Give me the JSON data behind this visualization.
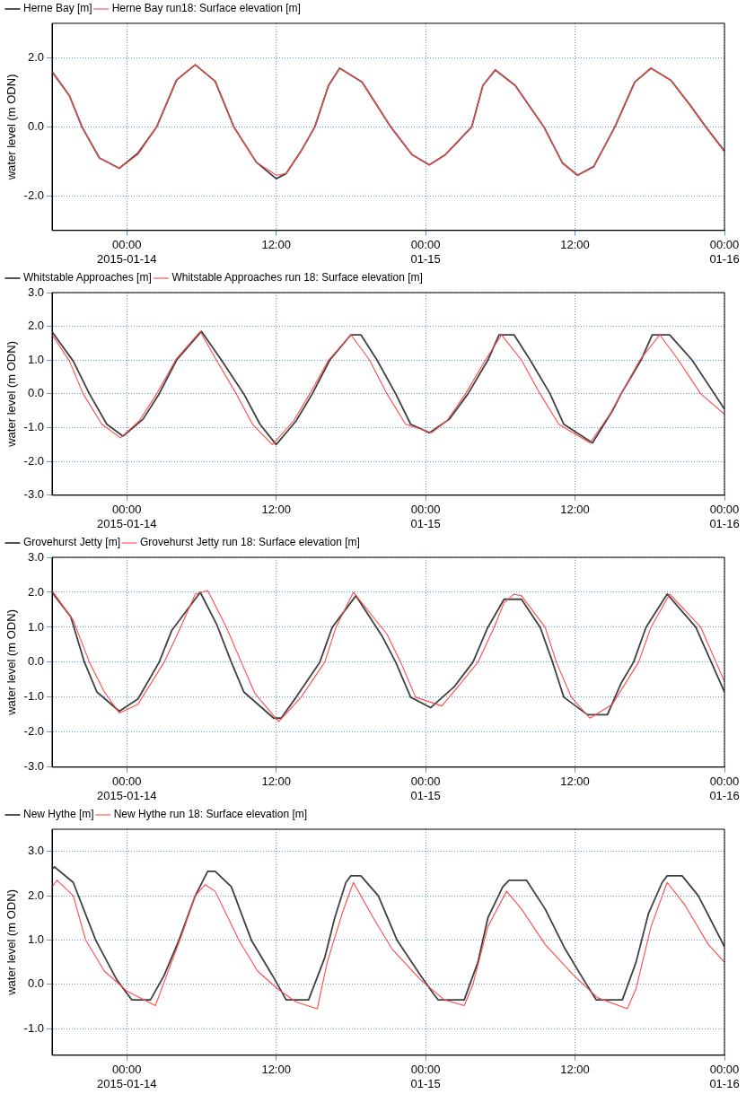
{
  "chart_data": [
    {
      "type": "line",
      "ylabel": "water level (m ODN)",
      "legend": "top left",
      "grid": true,
      "marker": "none",
      "line_style": "solid",
      "xlim": [
        "2015-01-13T18:00",
        "2015-01-16T00:00"
      ],
      "xticks": [
        {
          "value": "2015-01-14T00:00",
          "label": "00:00\n2015-01-14"
        },
        {
          "value": "2015-01-14T12:00",
          "label": "12:00"
        },
        {
          "value": "2015-01-15T00:00",
          "label": "00:00\n01-15"
        },
        {
          "value": "2015-01-15T12:00",
          "label": "12:00"
        },
        {
          "value": "2015-01-16T00:00",
          "label": "00:00\n01-16"
        }
      ],
      "ylim": [
        -3,
        3
      ],
      "yticks": [
        {
          "value": -2,
          "label": "-2.0"
        },
        {
          "value": 0,
          "label": "0.0"
        },
        {
          "value": 2,
          "label": "2.0"
        }
      ],
      "x": [
        "2015-01-13T18:00",
        "2015-01-13T19:24",
        "2015-01-13T20:24",
        "2015-01-13T21:48",
        "2015-01-13T23:24",
        "2015-01-14T00:54",
        "2015-01-14T02:24",
        "2015-01-14T04:00",
        "2015-01-14T05:30",
        "2015-01-14T07:06",
        "2015-01-14T08:36",
        "2015-01-14T10:24",
        "2015-01-14T12:00",
        "2015-01-14T12:48",
        "2015-01-14T14:00",
        "2015-01-14T15:06",
        "2015-01-14T16:12",
        "2015-01-14T17:06",
        "2015-01-14T18:54",
        "2015-01-14T21:12",
        "2015-01-14T22:54",
        "2015-01-15T00:18",
        "2015-01-15T01:36",
        "2015-01-15T03:42",
        "2015-01-15T04:36",
        "2015-01-15T05:36",
        "2015-01-15T07:12",
        "2015-01-15T09:30",
        "2015-01-15T11:00",
        "2015-01-15T12:12",
        "2015-01-15T13:30",
        "2015-01-15T15:12",
        "2015-01-15T16:48",
        "2015-01-15T18:06",
        "2015-01-15T19:42",
        "2015-01-15T21:12",
        "2015-01-15T22:30",
        "2015-01-16T00:00"
      ],
      "series": [
        {
          "name": "Herne Bay [m]",
          "color": "#404040",
          "values": [
            1.6,
            0.9,
            0.0,
            -0.9,
            -1.2,
            -0.76,
            0.0,
            1.36,
            1.8,
            1.32,
            0.0,
            -1.02,
            -1.5,
            -1.35,
            -0.7,
            0.0,
            1.2,
            1.7,
            1.3,
            0.0,
            -0.8,
            -1.1,
            -0.8,
            0.0,
            1.2,
            1.65,
            1.2,
            0.0,
            -1.05,
            -1.4,
            -1.15,
            0.0,
            1.3,
            1.7,
            1.35,
            0.65,
            0.0,
            -0.7
          ]
        },
        {
          "name": "Herne Bay run18: Surface elevation [m]",
          "color": "#ff4a4a",
          "values": [
            1.6,
            0.9,
            0.0,
            -0.9,
            -1.2,
            -0.8,
            0.0,
            1.36,
            1.8,
            1.32,
            0.0,
            -1.02,
            -1.4,
            -1.35,
            -0.7,
            0.0,
            1.2,
            1.7,
            1.3,
            0.0,
            -0.8,
            -1.1,
            -0.8,
            0.0,
            1.2,
            1.65,
            1.2,
            0.0,
            -1.05,
            -1.4,
            -1.15,
            0.0,
            1.3,
            1.7,
            1.35,
            0.65,
            0.0,
            -0.7
          ]
        }
      ]
    },
    {
      "type": "line",
      "ylabel": "water level (m ODN)",
      "legend": "top left",
      "grid": true,
      "marker": "none",
      "line_style": "solid",
      "xlim": [
        "2015-01-13T18:00",
        "2015-01-16T00:00"
      ],
      "xticks": [
        {
          "value": "2015-01-14T00:00",
          "label": "00:00\n2015-01-14"
        },
        {
          "value": "2015-01-14T12:00",
          "label": "12:00"
        },
        {
          "value": "2015-01-15T00:00",
          "label": "00:00\n01-15"
        },
        {
          "value": "2015-01-15T12:00",
          "label": "12:00"
        },
        {
          "value": "2015-01-16T00:00",
          "label": "00:00\n01-16"
        }
      ],
      "ylim": [
        -3,
        3
      ],
      "yticks": [
        {
          "value": -3,
          "label": "-3.0"
        },
        {
          "value": -2,
          "label": "-2.0"
        },
        {
          "value": -1,
          "label": "-1.0"
        },
        {
          "value": 0,
          "label": "0.0"
        },
        {
          "value": 1,
          "label": "1.0"
        },
        {
          "value": 2,
          "label": "2.0"
        },
        {
          "value": 3,
          "label": "3.0"
        }
      ],
      "series": [
        {
          "name": "Whitstable Approaches [m]",
          "color": "#404040",
          "x": [
            "2015-01-13T18:00",
            "2015-01-13T19:42",
            "2015-01-13T21:00",
            "2015-01-13T22:24",
            "2015-01-13T23:42",
            "2015-01-14T01:18",
            "2015-01-14T02:36",
            "2015-01-14T04:00",
            "2015-01-14T06:00",
            "2015-01-14T07:36",
            "2015-01-14T09:24",
            "2015-01-14T10:42",
            "2015-01-14T12:00",
            "2015-01-14T13:36",
            "2015-01-14T14:54",
            "2015-01-14T16:18",
            "2015-01-14T18:00",
            "2015-01-14T18:48",
            "2015-01-14T20:06",
            "2015-01-14T21:36",
            "2015-01-14T22:48",
            "2015-01-15T00:18",
            "2015-01-15T01:54",
            "2015-01-15T03:24",
            "2015-01-15T05:00",
            "2015-01-15T05:54",
            "2015-01-15T07:06",
            "2015-01-15T08:24",
            "2015-01-15T10:00",
            "2015-01-15T11:06",
            "2015-01-15T13:24",
            "2015-01-15T15:00",
            "2015-01-15T15:42",
            "2015-01-15T17:18",
            "2015-01-15T18:12",
            "2015-01-15T19:36",
            "2015-01-15T21:24",
            "2015-01-16T00:00"
          ],
          "values": [
            1.84,
            0.97,
            0.0,
            -0.9,
            -1.25,
            -0.75,
            0.0,
            1.0,
            1.85,
            1.0,
            0.0,
            -0.9,
            -1.5,
            -0.8,
            0.0,
            1.0,
            1.75,
            1.75,
            1.0,
            0.0,
            -0.9,
            -1.15,
            -0.75,
            0.0,
            1.0,
            1.75,
            1.75,
            1.0,
            0.0,
            -0.9,
            -1.45,
            -0.5,
            0.0,
            1.0,
            1.75,
            1.75,
            1.0,
            -0.45
          ]
        },
        {
          "name": "Whitstable Approaches run 18: Surface elevation [m]",
          "color": "#ff4a4a",
          "x": [
            "2015-01-13T18:00",
            "2015-01-13T19:24",
            "2015-01-13T20:30",
            "2015-01-13T22:00",
            "2015-01-13T23:30",
            "2015-01-14T01:00",
            "2015-01-14T02:24",
            "2015-01-14T04:00",
            "2015-01-14T05:54",
            "2015-01-14T07:12",
            "2015-01-14T08:48",
            "2015-01-14T10:06",
            "2015-01-14T11:42",
            "2015-01-14T13:24",
            "2015-01-14T14:42",
            "2015-01-14T16:12",
            "2015-01-14T18:00",
            "2015-01-14T19:30",
            "2015-01-14T20:54",
            "2015-01-14T22:24",
            "2015-01-15T00:30",
            "2015-01-15T01:42",
            "2015-01-15T03:12",
            "2015-01-15T04:48",
            "2015-01-15T06:06",
            "2015-01-15T07:42",
            "2015-01-15T09:12",
            "2015-01-15T10:42",
            "2015-01-15T13:12",
            "2015-01-15T14:48",
            "2015-01-15T15:42",
            "2015-01-15T17:12",
            "2015-01-15T18:48",
            "2015-01-15T20:18",
            "2015-01-15T22:06",
            "2015-01-16T00:00"
          ],
          "values": [
            1.75,
            0.97,
            0.0,
            -0.9,
            -1.3,
            -0.8,
            0.0,
            1.05,
            1.85,
            1.0,
            0.0,
            -0.9,
            -1.5,
            -0.8,
            0.0,
            1.0,
            1.75,
            1.0,
            0.0,
            -0.9,
            -1.15,
            -0.8,
            0.0,
            1.0,
            1.75,
            1.0,
            0.0,
            -0.9,
            -1.45,
            -0.6,
            0.0,
            1.0,
            1.75,
            1.0,
            0.0,
            -0.6
          ]
        }
      ]
    },
    {
      "type": "line",
      "ylabel": "water level (m ODN)",
      "legend": "top left",
      "grid": true,
      "marker": "none",
      "line_style": "solid",
      "xlim": [
        "2015-01-13T18:00",
        "2015-01-16T00:00"
      ],
      "xticks": [
        {
          "value": "2015-01-14T00:00",
          "label": "00:00\n2015-01-14"
        },
        {
          "value": "2015-01-14T12:00",
          "label": "12:00"
        },
        {
          "value": "2015-01-15T00:00",
          "label": "00:00\n01-15"
        },
        {
          "value": "2015-01-15T12:00",
          "label": "12:00"
        },
        {
          "value": "2015-01-16T00:00",
          "label": "00:00\n01-16"
        }
      ],
      "ylim": [
        -3,
        3
      ],
      "yticks": [
        {
          "value": -3,
          "label": "-3.0"
        },
        {
          "value": -2,
          "label": "-2.0"
        },
        {
          "value": -1,
          "label": "-1.0"
        },
        {
          "value": 0,
          "label": "0.0"
        },
        {
          "value": 1,
          "label": "1.0"
        },
        {
          "value": 2,
          "label": "2.0"
        },
        {
          "value": 3,
          "label": "3.0"
        }
      ],
      "series": [
        {
          "name": "Grovehurst Jetty [m]",
          "color": "#404040",
          "x": [
            "2015-01-13T18:00",
            "2015-01-13T19:30",
            "2015-01-13T20:36",
            "2015-01-13T21:36",
            "2015-01-13T23:24",
            "2015-01-14T00:54",
            "2015-01-14T02:36",
            "2015-01-14T03:36",
            "2015-01-14T05:54",
            "2015-01-14T07:12",
            "2015-01-14T08:24",
            "2015-01-14T09:24",
            "2015-01-14T11:48",
            "2015-01-14T12:24",
            "2015-01-14T13:36",
            "2015-01-14T15:30",
            "2015-01-14T16:30",
            "2015-01-14T18:24",
            "2015-01-14T20:30",
            "2015-01-14T21:36",
            "2015-01-14T22:48",
            "2015-01-15T00:24",
            "2015-01-15T02:18",
            "2015-01-15T03:48",
            "2015-01-15T05:00",
            "2015-01-15T06:18",
            "2015-01-15T07:42",
            "2015-01-15T09:12",
            "2015-01-15T10:12",
            "2015-01-15T11:06",
            "2015-01-15T13:00",
            "2015-01-15T14:36",
            "2015-01-15T15:42",
            "2015-01-15T16:42",
            "2015-01-15T17:42",
            "2015-01-15T19:24",
            "2015-01-15T21:42",
            "2015-01-16T00:00"
          ],
          "values": [
            2.0,
            1.3,
            0.0,
            -0.85,
            -1.4,
            -1.05,
            0.0,
            0.9,
            2.0,
            1.1,
            0.0,
            -0.85,
            -1.6,
            -1.6,
            -1.0,
            0.0,
            1.0,
            1.9,
            0.75,
            0.0,
            -1.0,
            -1.3,
            -0.7,
            0.0,
            1.0,
            1.8,
            1.8,
            1.0,
            0.0,
            -1.0,
            -1.5,
            -1.5,
            -0.6,
            0.0,
            1.0,
            1.95,
            1.0,
            -0.85
          ]
        },
        {
          "name": "Grovehurst Jetty run 18: Surface elevation [m]",
          "color": "#ff4a4a",
          "x": [
            "2015-01-13T18:00",
            "2015-01-13T19:42",
            "2015-01-13T21:00",
            "2015-01-13T22:12",
            "2015-01-13T23:24",
            "2015-01-14T00:54",
            "2015-01-14T03:00",
            "2015-01-14T04:12",
            "2015-01-14T05:30",
            "2015-01-14T06:30",
            "2015-01-14T08:00",
            "2015-01-14T09:12",
            "2015-01-14T10:18",
            "2015-01-14T12:12",
            "2015-01-14T14:00",
            "2015-01-14T15:54",
            "2015-01-14T16:48",
            "2015-01-14T18:12",
            "2015-01-14T20:54",
            "2015-01-14T22:00",
            "2015-01-14T23:12",
            "2015-01-15T01:18",
            "2015-01-15T02:36",
            "2015-01-15T04:12",
            "2015-01-15T05:30",
            "2015-01-15T06:18",
            "2015-01-15T07:06",
            "2015-01-15T07:42",
            "2015-01-15T09:36",
            "2015-01-15T10:30",
            "2015-01-15T11:42",
            "2015-01-15T13:12",
            "2015-01-15T15:00",
            "2015-01-15T17:06",
            "2015-01-15T18:06",
            "2015-01-15T19:36",
            "2015-01-15T22:06",
            "2015-01-16T00:00"
          ],
          "values": [
            2.05,
            1.2,
            0.0,
            -0.85,
            -1.45,
            -1.2,
            0.0,
            0.9,
            1.95,
            2.05,
            1.0,
            0.0,
            -0.9,
            -1.7,
            -1.0,
            0.0,
            1.0,
            2.0,
            0.8,
            0.0,
            -1.0,
            -1.25,
            -0.7,
            0.0,
            1.0,
            1.7,
            1.95,
            1.9,
            1.0,
            0.0,
            -1.0,
            -1.6,
            -1.2,
            0.0,
            1.0,
            1.95,
            1.0,
            -0.55
          ]
        }
      ]
    },
    {
      "type": "line",
      "ylabel": "water level (m ODN)",
      "legend": "top left",
      "grid": true,
      "marker": "none",
      "line_style": "solid",
      "xlim": [
        "2015-01-13T18:00",
        "2015-01-16T00:00"
      ],
      "xticks": [
        {
          "value": "2015-01-14T00:00",
          "label": "00:00\n2015-01-14"
        },
        {
          "value": "2015-01-14T12:00",
          "label": "12:00"
        },
        {
          "value": "2015-01-15T00:00",
          "label": "00:00\n01-15"
        },
        {
          "value": "2015-01-15T12:00",
          "label": "12:00"
        },
        {
          "value": "2015-01-16T00:00",
          "label": "00:00\n01-16"
        }
      ],
      "ylim": [
        -1.6,
        3.5
      ],
      "yticks": [
        {
          "value": -1,
          "label": "-1.0"
        },
        {
          "value": 0,
          "label": "0.0"
        },
        {
          "value": 1,
          "label": "1.0"
        },
        {
          "value": 2,
          "label": "2.0"
        },
        {
          "value": 3,
          "label": "3.0"
        }
      ],
      "series": [
        {
          "name": "New Hythe [m]",
          "color": "#404040",
          "x": [
            "2015-01-13T18:00",
            "2015-01-13T18:12",
            "2015-01-13T19:42",
            "2015-01-13T21:30",
            "2015-01-13T23:12",
            "2015-01-14T00:24",
            "2015-01-14T01:54",
            "2015-01-14T03:00",
            "2015-01-14T04:12",
            "2015-01-14T05:30",
            "2015-01-14T06:30",
            "2015-01-14T07:06",
            "2015-01-14T08:24",
            "2015-01-14T10:00",
            "2015-01-14T11:42",
            "2015-01-14T12:30",
            "2015-01-14T12:48",
            "2015-01-14T14:36",
            "2015-01-14T15:54",
            "2015-01-14T16:42",
            "2015-01-14T17:36",
            "2015-01-14T18:00",
            "2015-01-14T18:48",
            "2015-01-14T20:12",
            "2015-01-14T21:42",
            "2015-01-14T23:36",
            "2015-01-15T00:36",
            "2015-01-15T01:00",
            "2015-01-15T03:06",
            "2015-01-15T04:12",
            "2015-01-15T05:00",
            "2015-01-15T06:12",
            "2015-01-15T06:42",
            "2015-01-15T08:06",
            "2015-01-15T09:36",
            "2015-01-15T11:12",
            "2015-01-15T12:42",
            "2015-01-15T13:42",
            "2015-01-15T15:48",
            "2015-01-15T16:54",
            "2015-01-15T17:54",
            "2015-01-15T19:00",
            "2015-01-15T19:24",
            "2015-01-15T20:36",
            "2015-01-15T21:54",
            "2015-01-16T00:00"
          ],
          "values": [
            2.6,
            2.65,
            2.3,
            1.0,
            0.1,
            -0.35,
            -0.35,
            0.2,
            1.0,
            2.0,
            2.55,
            2.55,
            2.2,
            1.0,
            0.2,
            -0.2,
            -0.35,
            -0.35,
            0.6,
            1.5,
            2.3,
            2.45,
            2.45,
            2.0,
            1.0,
            0.2,
            -0.2,
            -0.35,
            -0.35,
            0.5,
            1.5,
            2.2,
            2.35,
            2.35,
            1.7,
            0.8,
            0.1,
            -0.35,
            -0.35,
            0.5,
            1.6,
            2.3,
            2.45,
            2.45,
            2.0,
            0.85
          ]
        },
        {
          "name": "New Hythe run 18: Surface elevation [m]",
          "color": "#ff4a4a",
          "x": [
            "2015-01-13T18:00",
            "2015-01-13T18:24",
            "2015-01-13T19:42",
            "2015-01-13T20:42",
            "2015-01-13T22:12",
            "2015-01-14T00:00",
            "2015-01-14T02:18",
            "2015-01-14T03:12",
            "2015-01-14T04:24",
            "2015-01-14T05:30",
            "2015-01-14T06:18",
            "2015-01-14T07:06",
            "2015-01-14T09:00",
            "2015-01-14T10:30",
            "2015-01-14T12:06",
            "2015-01-14T13:36",
            "2015-01-14T15:18",
            "2015-01-14T16:06",
            "2015-01-14T17:18",
            "2015-01-14T18:12",
            "2015-01-14T19:48",
            "2015-01-14T21:18",
            "2015-01-14T23:36",
            "2015-01-15T01:30",
            "2015-01-15T03:06",
            "2015-01-15T03:48",
            "2015-01-15T05:00",
            "2015-01-15T06:30",
            "2015-01-15T07:42",
            "2015-01-15T09:36",
            "2015-01-15T11:54",
            "2015-01-15T13:48",
            "2015-01-15T16:12",
            "2015-01-15T16:54",
            "2015-01-15T18:06",
            "2015-01-15T19:24",
            "2015-01-15T20:48",
            "2015-01-15T22:42",
            "2015-01-16T00:00"
          ],
          "values": [
            2.2,
            2.35,
            2.0,
            1.0,
            0.3,
            -0.15,
            -0.48,
            0.2,
            1.1,
            2.0,
            2.25,
            2.1,
            1.0,
            0.3,
            -0.1,
            -0.4,
            -0.55,
            0.5,
            1.6,
            2.3,
            1.5,
            0.8,
            0.1,
            -0.35,
            -0.48,
            0.0,
            1.3,
            2.1,
            1.7,
            0.9,
            0.2,
            -0.3,
            -0.55,
            -0.1,
            1.3,
            2.3,
            1.8,
            0.9,
            0.5
          ]
        }
      ]
    }
  ]
}
